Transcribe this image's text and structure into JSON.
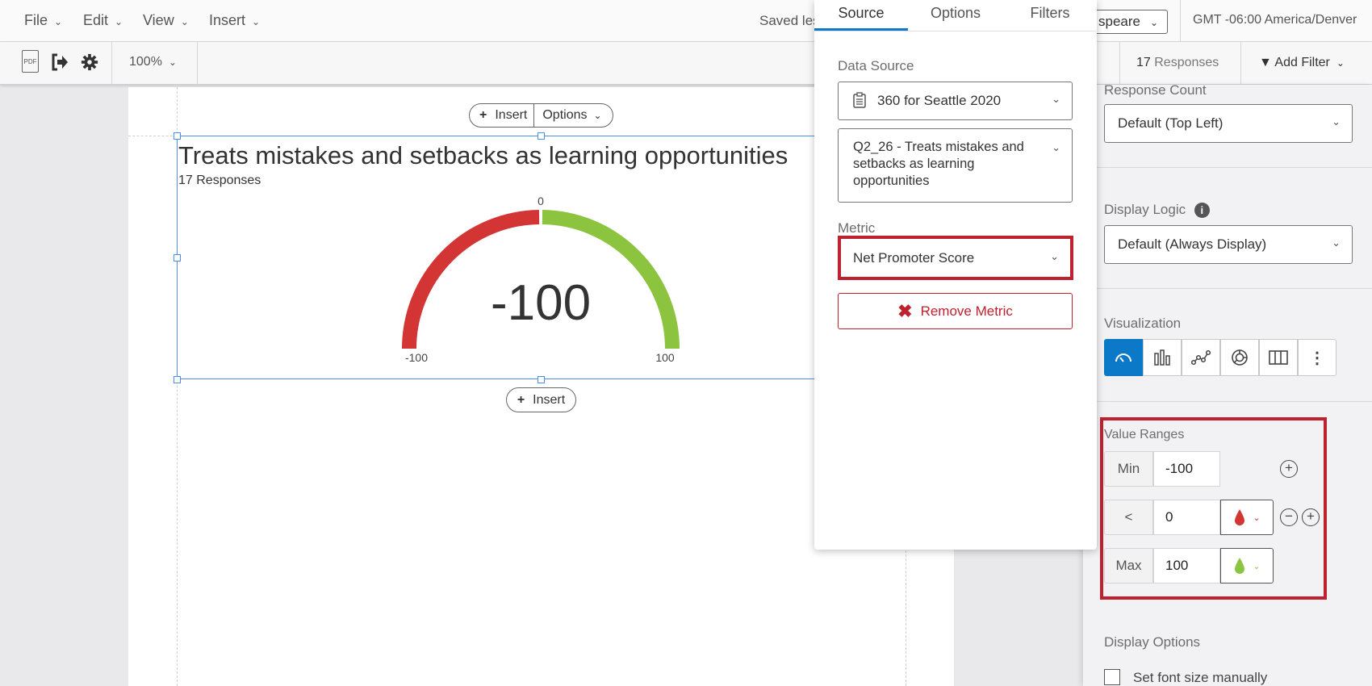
{
  "menubar": {
    "items": [
      {
        "label": "File"
      },
      {
        "label": "Edit"
      },
      {
        "label": "View"
      },
      {
        "label": "Insert"
      }
    ],
    "saved_text": "Saved les",
    "workspace_select": "speare",
    "timezone": "GMT -06:00 America/Denver"
  },
  "toolbar": {
    "zoom": "100%",
    "responses_count": "17",
    "responses_label": "Responses",
    "add_filter": "Add Filter",
    "pdf_icon_text": "PDF"
  },
  "widget": {
    "insert_label": "Insert",
    "options_label": "Options",
    "title": "Treats mistakes and setbacks as learning opportunities",
    "subtitle": "17 Responses",
    "insert_below_label": "Insert"
  },
  "chart_data": {
    "type": "gauge",
    "value": -100,
    "value_label": "-100",
    "min": -100,
    "max": 100,
    "ticks": [
      {
        "value": -100,
        "label": "-100"
      },
      {
        "value": 0,
        "label": "0"
      },
      {
        "value": 100,
        "label": "100"
      }
    ],
    "ranges": [
      {
        "from": -100,
        "to": 0,
        "color": "#d33535"
      },
      {
        "from": 0,
        "to": 100,
        "color": "#8cc43f"
      }
    ]
  },
  "popup": {
    "tabs": [
      {
        "label": "Source",
        "active": true
      },
      {
        "label": "Options"
      },
      {
        "label": "Filters"
      }
    ],
    "data_source_label": "Data Source",
    "data_source": "360 for Seattle 2020",
    "question": "Q2_26 - Treats mistakes and setbacks as learning opportunities",
    "metric_label": "Metric",
    "metric": "Net Promoter Score",
    "remove_metric": "Remove Metric"
  },
  "panel": {
    "response_count_label": "Response Count",
    "response_count_value": "Default (Top Left)",
    "display_logic_label": "Display Logic",
    "display_logic_value": "Default (Always Display)",
    "visualization_label": "Visualization",
    "visualization_types": [
      "gauge",
      "bar",
      "line",
      "donut",
      "table",
      "more"
    ],
    "active_visualization": "gauge",
    "value_ranges_label": "Value Ranges",
    "ranges": [
      {
        "label": "Min",
        "value": "-100"
      },
      {
        "label": "<",
        "value": "0",
        "color": "#d33535"
      },
      {
        "label": "Max",
        "value": "100",
        "color": "#8cc43f"
      }
    ],
    "display_options_label": "Display Options",
    "font_size_checkbox": "Set font size manually",
    "font_size_checked": false
  },
  "colors": {
    "accent": "#0b78c8",
    "highlight": "#c0212f",
    "red": "#d33535",
    "green": "#8cc43f"
  }
}
